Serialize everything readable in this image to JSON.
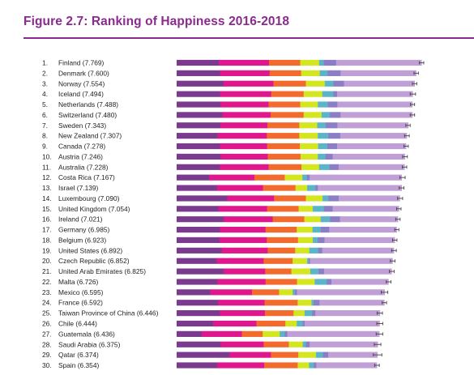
{
  "title": "Figure 2.7: Ranking of Happiness 2016-2018",
  "colors": {
    "title": "#8a2a8e",
    "segments": [
      "#7a3b8f",
      "#e0178c",
      "#f26b2d",
      "#d4e61e",
      "#5bb5c8",
      "#8c7ec6",
      "#c09fd6"
    ],
    "error_bar": "#444444"
  },
  "chart_data": {
    "type": "bar",
    "orientation": "horizontal",
    "stacked": true,
    "title": "",
    "xlabel": "",
    "ylabel": "",
    "xlim": [
      0,
      8
    ],
    "grid": false,
    "rows": [
      {
        "rank": "1.",
        "label": "Finland (7.769)",
        "value": 7.769,
        "segments": [
          1.34,
          1.59,
          0.99,
          0.6,
          0.15,
          0.39,
          2.71
        ],
        "ci": [
          7.7,
          7.84
        ]
      },
      {
        "rank": "2.",
        "label": "Denmark (7.600)",
        "value": 7.6,
        "segments": [
          1.38,
          1.57,
          1.0,
          0.59,
          0.25,
          0.41,
          2.4
        ],
        "ci": [
          7.53,
          7.67
        ]
      },
      {
        "rank": "3.",
        "label": "Norway (7.554)",
        "value": 7.554,
        "segments": [
          1.49,
          1.58,
          1.03,
          0.6,
          0.27,
          0.34,
          2.24
        ],
        "ci": [
          7.48,
          7.62
        ]
      },
      {
        "rank": "4.",
        "label": "Iceland (7.494)",
        "value": 7.494,
        "segments": [
          1.38,
          1.62,
          1.03,
          0.59,
          0.35,
          0.12,
          2.4
        ],
        "ci": [
          7.41,
          7.58
        ]
      },
      {
        "rank": "5.",
        "label": "Netherlands (7.488)",
        "value": 7.488,
        "segments": [
          1.4,
          1.52,
          1.0,
          0.56,
          0.32,
          0.3,
          2.38
        ],
        "ci": [
          7.42,
          7.55
        ]
      },
      {
        "rank": "6.",
        "label": "Switzerland (7.480)",
        "value": 7.48,
        "segments": [
          1.45,
          1.53,
          1.05,
          0.57,
          0.26,
          0.34,
          2.28
        ],
        "ci": [
          7.41,
          7.55
        ]
      },
      {
        "rank": "7.",
        "label": "Sweden (7.343)",
        "value": 7.343,
        "segments": [
          1.39,
          1.49,
          1.01,
          0.57,
          0.27,
          0.37,
          2.25
        ],
        "ci": [
          7.27,
          7.41
        ]
      },
      {
        "rank": "8.",
        "label": "New Zealand (7.307)",
        "value": 7.307,
        "segments": [
          1.3,
          1.56,
          1.03,
          0.59,
          0.33,
          0.38,
          2.11
        ],
        "ci": [
          7.23,
          7.38
        ]
      },
      {
        "rank": "9.",
        "label": "Canada (7.278)",
        "value": 7.278,
        "segments": [
          1.37,
          1.5,
          1.04,
          0.58,
          0.29,
          0.31,
          2.19
        ],
        "ci": [
          7.21,
          7.35
        ]
      },
      {
        "rank": "10.",
        "label": "Austria (7.246)",
        "value": 7.246,
        "segments": [
          1.4,
          1.49,
          1.04,
          0.55,
          0.24,
          0.23,
          2.29
        ],
        "ci": [
          7.17,
          7.32
        ]
      },
      {
        "rank": "11.",
        "label": "Australia (7.228)",
        "value": 7.228,
        "segments": [
          1.37,
          1.55,
          1.04,
          0.56,
          0.33,
          0.29,
          2.09
        ],
        "ci": [
          7.16,
          7.3
        ]
      },
      {
        "rank": "12.",
        "label": "Costa Rica (7.167)",
        "value": 7.167,
        "segments": [
          1.03,
          1.44,
          0.96,
          0.56,
          0.14,
          0.09,
          2.92
        ],
        "ci": [
          7.08,
          7.25
        ]
      },
      {
        "rank": "13.",
        "label": "Israel (7.139)",
        "value": 7.139,
        "segments": [
          1.28,
          1.46,
          1.03,
          0.37,
          0.26,
          0.08,
          2.66
        ],
        "ci": [
          7.06,
          7.21
        ]
      },
      {
        "rank": "14.",
        "label": "Luxembourg (7.090)",
        "value": 7.09,
        "segments": [
          1.61,
          1.48,
          1.01,
          0.53,
          0.19,
          0.32,
          1.94
        ],
        "ci": [
          7.01,
          7.17
        ]
      },
      {
        "rank": "15.",
        "label": "United Kingdom (7.054)",
        "value": 7.054,
        "segments": [
          1.33,
          1.54,
          1.0,
          0.45,
          0.35,
          0.28,
          2.1
        ],
        "ci": [
          6.98,
          7.12
        ]
      },
      {
        "rank": "16.",
        "label": "Ireland (7.021)",
        "value": 7.021,
        "segments": [
          1.5,
          1.55,
          1.0,
          0.52,
          0.3,
          0.31,
          1.84
        ],
        "ci": [
          6.95,
          7.09
        ]
      },
      {
        "rank": "17.",
        "label": "Germany (6.985)",
        "value": 6.985,
        "segments": [
          1.37,
          1.45,
          0.99,
          0.5,
          0.26,
          0.27,
          2.14
        ],
        "ci": [
          6.92,
          7.05
        ]
      },
      {
        "rank": "18.",
        "label": "Belgium (6.923)",
        "value": 6.923,
        "segments": [
          1.36,
          1.5,
          0.99,
          0.47,
          0.16,
          0.21,
          2.23
        ],
        "ci": [
          6.85,
          6.99
        ]
      },
      {
        "rank": "19.",
        "label": "United States (6.892)",
        "value": 6.892,
        "segments": [
          1.43,
          1.46,
          0.87,
          0.45,
          0.28,
          0.13,
          2.27
        ],
        "ci": [
          6.82,
          6.97
        ]
      },
      {
        "rank": "20.",
        "label": "Czech Republic (6.852)",
        "value": 6.852,
        "segments": [
          1.27,
          1.49,
          0.92,
          0.46,
          0.05,
          0.04,
          2.62
        ],
        "ci": [
          6.78,
          6.93
        ]
      },
      {
        "rank": "21.",
        "label": "United Arab Emirates (6.825)",
        "value": 6.825,
        "segments": [
          1.5,
          1.31,
          0.83,
          0.6,
          0.26,
          0.18,
          2.14
        ],
        "ci": [
          6.75,
          6.9
        ]
      },
      {
        "rank": "22.",
        "label": "Malta (6.726)",
        "value": 6.726,
        "segments": [
          1.3,
          1.52,
          1.0,
          0.56,
          0.38,
          0.15,
          1.81
        ],
        "ci": [
          6.65,
          6.8
        ]
      },
      {
        "rank": "23.",
        "label": "Mexico (6.595)",
        "value": 6.595,
        "segments": [
          1.07,
          1.32,
          0.86,
          0.43,
          0.07,
          0.07,
          2.78
        ],
        "ci": [
          6.49,
          6.7
        ]
      },
      {
        "rank": "24.",
        "label": "France (6.592)",
        "value": 6.592,
        "segments": [
          1.32,
          1.47,
          1.05,
          0.44,
          0.07,
          0.18,
          2.06
        ],
        "ci": [
          6.52,
          6.66
        ]
      },
      {
        "rank": "25.",
        "label": "Taiwan Province of China (6.446)",
        "value": 6.446,
        "segments": [
          1.37,
          1.43,
          0.91,
          0.35,
          0.24,
          0.1,
          2.05
        ],
        "ci": [
          6.36,
          6.53
        ]
      },
      {
        "rank": "26.",
        "label": "Chile (6.444)",
        "value": 6.444,
        "segments": [
          1.16,
          1.37,
          0.92,
          0.36,
          0.19,
          0.06,
          2.38
        ],
        "ci": [
          6.35,
          6.54
        ]
      },
      {
        "rank": "27.",
        "label": "Guatemala (6.436)",
        "value": 6.436,
        "segments": [
          0.8,
          1.27,
          0.66,
          0.54,
          0.16,
          0.08,
          2.92
        ],
        "ci": [
          6.33,
          6.54
        ]
      },
      {
        "rank": "28.",
        "label": "Saudi Arabia (6.375)",
        "value": 6.375,
        "segments": [
          1.4,
          1.36,
          0.8,
          0.44,
          0.1,
          0.12,
          2.16
        ],
        "ci": [
          6.27,
          6.48
        ]
      },
      {
        "rank": "29.",
        "label": "Qatar (6.374)",
        "value": 6.374,
        "segments": [
          1.68,
          1.31,
          0.87,
          0.56,
          0.22,
          0.17,
          1.56
        ],
        "ci": [
          6.24,
          6.51
        ]
      },
      {
        "rank": "30.",
        "label": "Spain (6.354)",
        "value": 6.354,
        "segments": [
          1.29,
          1.49,
          1.06,
          0.36,
          0.15,
          0.08,
          1.92
        ],
        "ci": [
          6.28,
          6.43
        ]
      }
    ]
  }
}
